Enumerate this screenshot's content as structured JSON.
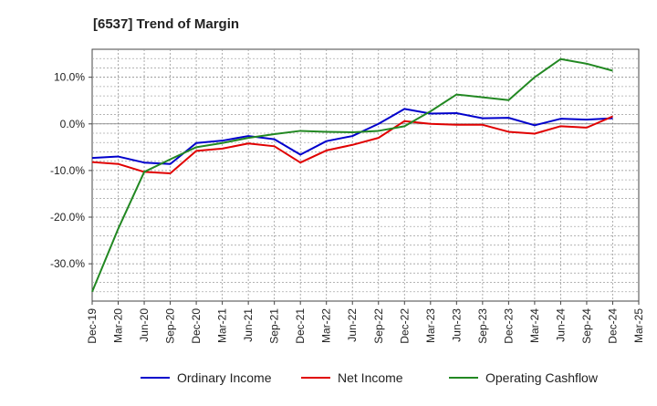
{
  "chart_data": {
    "type": "line",
    "title": "[6537]  Trend of Margin",
    "xlabel": "",
    "ylabel": "",
    "categories": [
      "Dec-19",
      "Mar-20",
      "Jun-20",
      "Sep-20",
      "Dec-20",
      "Mar-21",
      "Jun-21",
      "Sep-21",
      "Dec-21",
      "Mar-22",
      "Jun-22",
      "Sep-22",
      "Dec-22",
      "Mar-23",
      "Jun-23",
      "Sep-23",
      "Dec-23",
      "Mar-24",
      "Jun-24",
      "Sep-24",
      "Dec-24",
      "Mar-25"
    ],
    "ylim": [
      -38,
      16
    ],
    "yticks": [
      10,
      0,
      -10,
      -20,
      -30
    ],
    "ytick_labels": [
      "10.0%",
      "0.0%",
      "-10.0%",
      "-20.0%",
      "-30.0%"
    ],
    "grid": true,
    "legend_position": "bottom",
    "series": [
      {
        "name": "Ordinary Income",
        "color": "#0000cc",
        "values": [
          -7.3,
          -7.0,
          -8.3,
          -8.6,
          -4.1,
          -3.6,
          -2.6,
          -3.3,
          -6.6,
          -3.7,
          -2.6,
          0.0,
          3.2,
          2.2,
          2.3,
          1.2,
          1.3,
          -0.3,
          1.1,
          0.9,
          1.2,
          null
        ]
      },
      {
        "name": "Net Income",
        "color": "#e00000",
        "values": [
          -8.2,
          -8.6,
          -10.3,
          -10.6,
          -5.8,
          -5.3,
          -4.2,
          -4.8,
          -8.3,
          -5.7,
          -4.5,
          -3.0,
          0.6,
          0.0,
          -0.2,
          -0.2,
          -1.7,
          -2.1,
          -0.5,
          -0.8,
          1.6,
          null
        ]
      },
      {
        "name": "Operating Cashflow",
        "color": "#228822",
        "values": [
          -36.0,
          -22.5,
          -10.3,
          -7.6,
          -5.0,
          -4.1,
          -3.0,
          -2.2,
          -1.5,
          -1.7,
          -1.8,
          -1.5,
          -0.5,
          2.7,
          6.3,
          5.7,
          5.1,
          10.0,
          13.9,
          12.9,
          11.4,
          null
        ]
      }
    ]
  }
}
